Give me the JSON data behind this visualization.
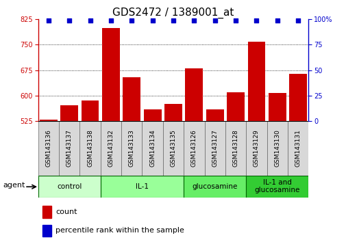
{
  "title": "GDS2472 / 1389001_at",
  "samples": [
    "GSM143136",
    "GSM143137",
    "GSM143138",
    "GSM143132",
    "GSM143133",
    "GSM143134",
    "GSM143135",
    "GSM143126",
    "GSM143127",
    "GSM143128",
    "GSM143129",
    "GSM143130",
    "GSM143131"
  ],
  "counts": [
    530,
    572,
    585,
    800,
    655,
    560,
    575,
    680,
    560,
    610,
    760,
    607,
    665
  ],
  "percentiles": [
    99,
    99,
    99,
    99,
    99,
    99,
    99,
    99,
    99,
    99,
    99,
    99,
    99
  ],
  "ylim_left": [
    525,
    825
  ],
  "ylim_right": [
    0,
    100
  ],
  "yticks_left": [
    525,
    600,
    675,
    750,
    825
  ],
  "yticks_right": [
    0,
    25,
    50,
    75,
    100
  ],
  "bar_color": "#cc0000",
  "dot_color": "#0000cc",
  "background_color": "#ffffff",
  "groups": [
    {
      "label": "control",
      "start": 0,
      "end": 3,
      "color": "#ccffcc"
    },
    {
      "label": "IL-1",
      "start": 3,
      "end": 7,
      "color": "#99ff99"
    },
    {
      "label": "glucosamine",
      "start": 7,
      "end": 10,
      "color": "#66ee66"
    },
    {
      "label": "IL-1 and\nglucosamine",
      "start": 10,
      "end": 13,
      "color": "#33cc33"
    }
  ],
  "tick_label_bg": "#cccccc",
  "tick_label_border": "#888888",
  "title_fontsize": 11,
  "tick_fontsize": 7,
  "sample_fontsize": 6.5
}
